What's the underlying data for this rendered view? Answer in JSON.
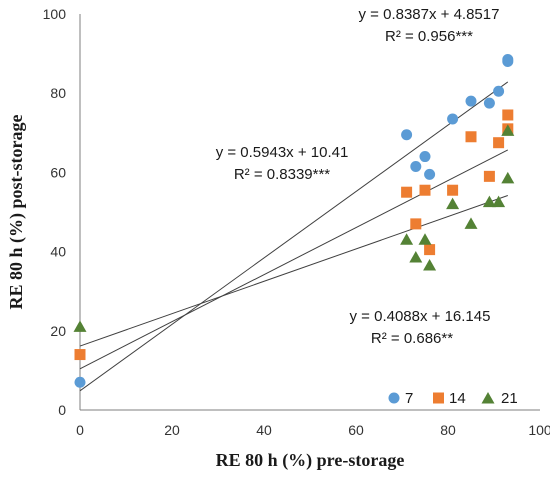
{
  "chart_data": {
    "type": "scatter",
    "title": "",
    "xlabel": "RE 80 h (%) pre-storage",
    "ylabel": "RE 80 h (%) post-storage",
    "xlim": [
      0,
      100
    ],
    "ylim": [
      0,
      100
    ],
    "x_ticks": [
      0,
      20,
      40,
      60,
      80,
      100
    ],
    "y_ticks": [
      0,
      20,
      40,
      60,
      80,
      100
    ],
    "x_tick_labels": [
      "0",
      "20",
      "40",
      "60",
      "80",
      "100"
    ],
    "y_tick_labels": [
      "0",
      "20",
      "40",
      "60",
      "80",
      "100"
    ],
    "grid": false,
    "legend_position": "bottom-right",
    "series": [
      {
        "name": "7",
        "color": "#5b9bd5",
        "marker": "circle",
        "points": [
          [
            0,
            7
          ],
          [
            71,
            69.5
          ],
          [
            73,
            61.5
          ],
          [
            75,
            64
          ],
          [
            76,
            59.5
          ],
          [
            81,
            73.5
          ],
          [
            85,
            78
          ],
          [
            89,
            77.5
          ],
          [
            91,
            80.5
          ],
          [
            93,
            88
          ],
          [
            93,
            88.5
          ]
        ],
        "trendline": {
          "slope": 0.8387,
          "intercept": 4.8517,
          "x_range": [
            0,
            93
          ]
        },
        "equation": "y = 0.8387x + 4.8517",
        "r2": "R² = 0.956***"
      },
      {
        "name": "14",
        "color": "#ed7d31",
        "marker": "square",
        "points": [
          [
            0,
            14
          ],
          [
            71,
            55
          ],
          [
            73,
            47
          ],
          [
            75,
            55.5
          ],
          [
            76,
            40.5
          ],
          [
            81,
            55.5
          ],
          [
            85,
            69
          ],
          [
            89,
            59
          ],
          [
            91,
            67.5
          ],
          [
            93,
            74.5
          ],
          [
            93,
            71
          ]
        ],
        "trendline": {
          "slope": 0.5943,
          "intercept": 10.41,
          "x_range": [
            0,
            93
          ]
        },
        "equation": "y = 0.5943x + 10.41",
        "r2": "R² = 0.8339***"
      },
      {
        "name": "21",
        "color": "#548235",
        "marker": "triangle",
        "points": [
          [
            0,
            21
          ],
          [
            71,
            43
          ],
          [
            73,
            38.5
          ],
          [
            75,
            43
          ],
          [
            76,
            36.5
          ],
          [
            81,
            52
          ],
          [
            85,
            47
          ],
          [
            89,
            52.5
          ],
          [
            91,
            52.5
          ],
          [
            93,
            58.5
          ],
          [
            93,
            70.5
          ]
        ],
        "trendline": {
          "slope": 0.4088,
          "intercept": 16.145,
          "x_range": [
            0,
            93
          ]
        },
        "equation": "y = 0.4088x + 16.145",
        "r2": "R² = 0.686**"
      }
    ]
  }
}
